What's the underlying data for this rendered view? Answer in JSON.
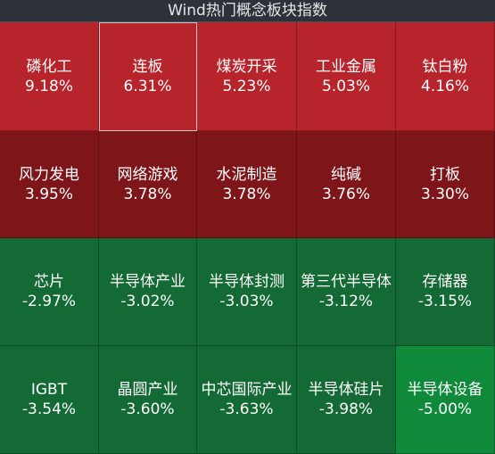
{
  "title": "Wind热门概念板块指数",
  "colors": {
    "bright_red": "#b8242b",
    "dark_red": "#7e1519",
    "green": "#136a34",
    "bright_green": "#0f8a3a"
  },
  "tiles": [
    {
      "name": "磷化工",
      "pct": "9.18%",
      "color": "#b8242b"
    },
    {
      "name": "连板",
      "pct": "6.31%",
      "color": "#b8242b",
      "selected": true
    },
    {
      "name": "煤炭开采",
      "pct": "5.23%",
      "color": "#b8242b"
    },
    {
      "name": "工业金属",
      "pct": "5.03%",
      "color": "#b8242b"
    },
    {
      "name": "钛白粉",
      "pct": "4.16%",
      "color": "#b8242b"
    },
    {
      "name": "风力发电",
      "pct": "3.95%",
      "color": "#7e1519"
    },
    {
      "name": "网络游戏",
      "pct": "3.78%",
      "color": "#7e1519"
    },
    {
      "name": "水泥制造",
      "pct": "3.78%",
      "color": "#7e1519"
    },
    {
      "name": "纯碱",
      "pct": "3.76%",
      "color": "#7e1519"
    },
    {
      "name": "打板",
      "pct": "3.30%",
      "color": "#7e1519"
    },
    {
      "name": "芯片",
      "pct": "-2.97%",
      "color": "#136a34"
    },
    {
      "name": "半导体产业",
      "pct": "-3.02%",
      "color": "#136a34"
    },
    {
      "name": "半导体封测",
      "pct": "-3.03%",
      "color": "#136a34"
    },
    {
      "name": "第三代半导体",
      "pct": "-3.12%",
      "color": "#136a34"
    },
    {
      "name": "存储器",
      "pct": "-3.15%",
      "color": "#136a34"
    },
    {
      "name": "IGBT",
      "pct": "-3.54%",
      "color": "#136a34"
    },
    {
      "name": "晶圆产业",
      "pct": "-3.60%",
      "color": "#136a34"
    },
    {
      "name": "中芯国际产业",
      "pct": "-3.63%",
      "color": "#136a34"
    },
    {
      "name": "半导体硅片",
      "pct": "-3.98%",
      "color": "#136a34"
    },
    {
      "name": "半导体设备",
      "pct": "-5.00%",
      "color": "#0f8a3a"
    }
  ]
}
